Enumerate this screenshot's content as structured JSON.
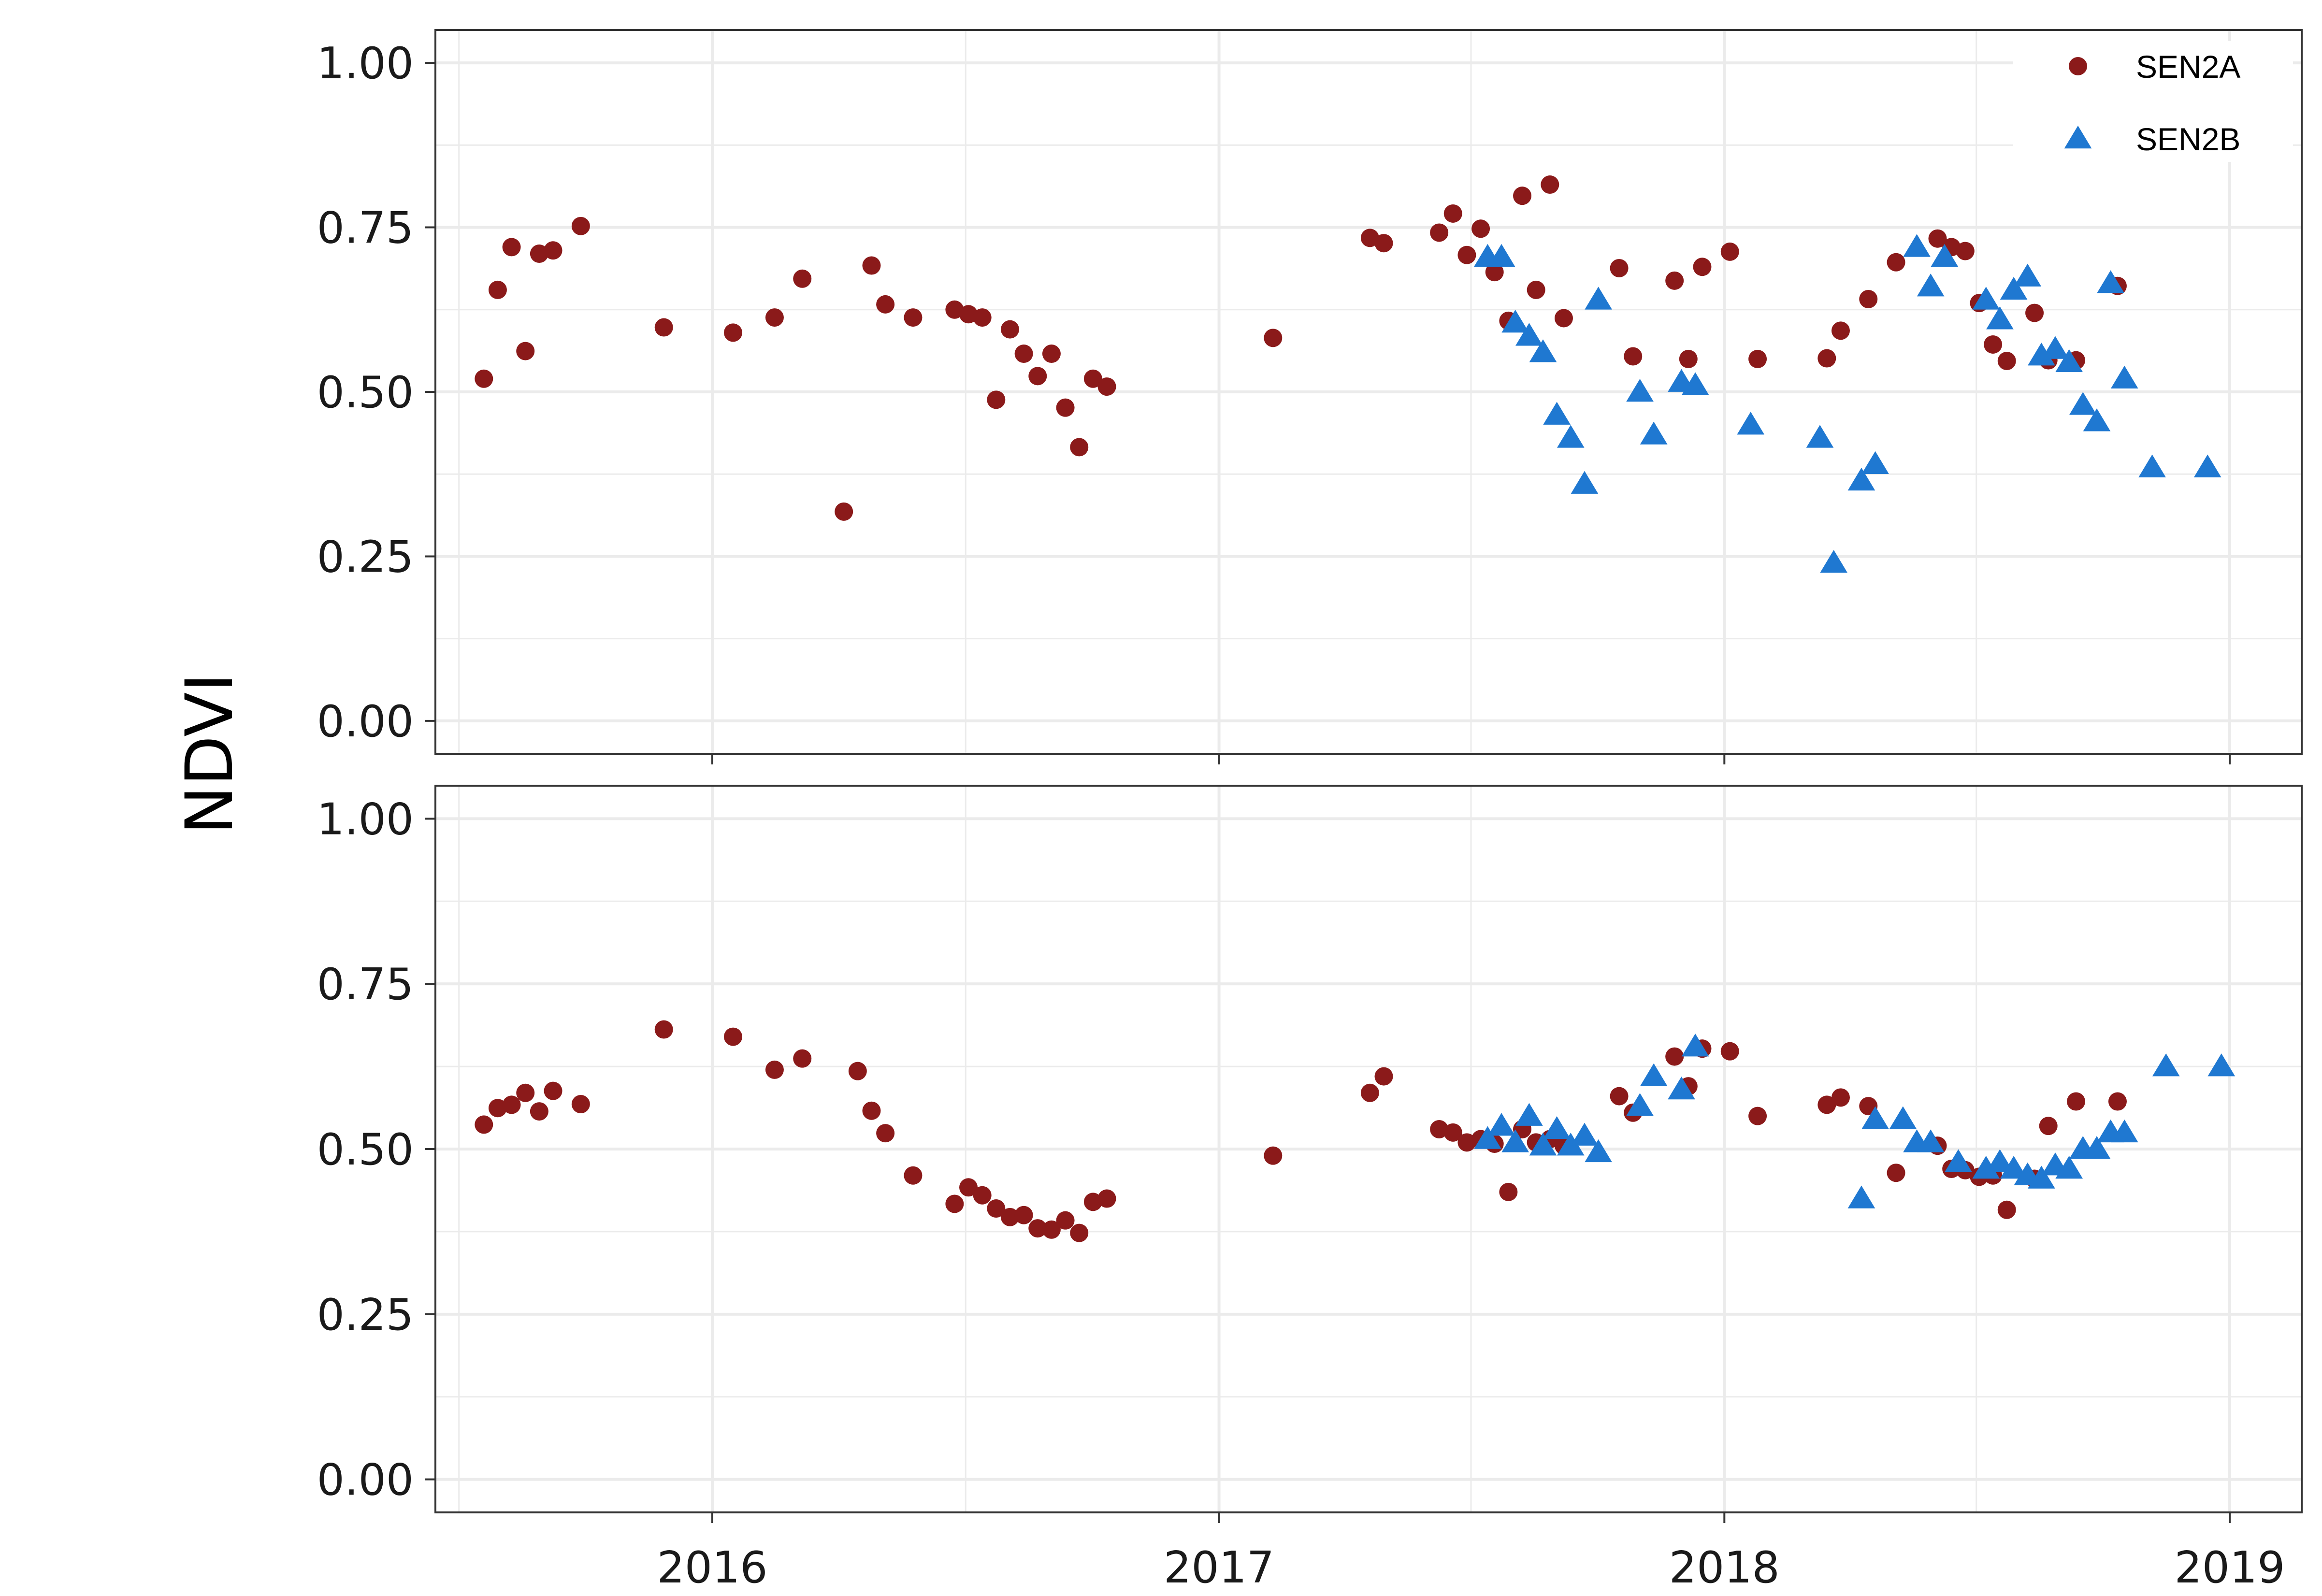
{
  "chart_data": {
    "type": "scatter",
    "ylabel": "NDVI",
    "xlabel": "",
    "x_ticks": [
      "2016",
      "2017",
      "2018",
      "2019"
    ],
    "y_ticks": [
      "0.00",
      "0.25",
      "0.50",
      "0.75",
      "1.00"
    ],
    "xlim": [
      "2015-06-15",
      "2019-02-22"
    ],
    "ylim": [
      -0.05,
      1.05
    ],
    "grid": true,
    "legend": {
      "placement": "top-right",
      "entries": [
        "SEN2A",
        "SEN2B"
      ]
    },
    "colors": {
      "SEN2A": "#8b1a1a",
      "SEN2B": "#1f78d1"
    },
    "markers": {
      "SEN2A": "circle",
      "SEN2B": "triangle"
    },
    "panels": [
      {
        "series": [
          {
            "name": "SEN2A",
            "x": [
              "2015-07-20",
              "2015-07-30",
              "2015-08-09",
              "2015-08-19",
              "2015-08-29",
              "2015-09-08",
              "2015-09-28",
              "2015-11-27",
              "2016-01-16",
              "2016-02-15",
              "2016-03-06",
              "2016-04-05",
              "2016-04-25",
              "2016-05-05",
              "2016-05-25",
              "2016-06-24",
              "2016-07-04",
              "2016-07-14",
              "2016-07-24",
              "2016-08-03",
              "2016-08-13",
              "2016-08-23",
              "2016-09-02",
              "2016-09-12",
              "2016-09-22",
              "2016-10-02",
              "2016-10-12",
              "2017-02-09",
              "2017-04-20",
              "2017-04-30",
              "2017-06-09",
              "2017-06-19",
              "2017-06-29",
              "2017-07-09",
              "2017-07-19",
              "2017-07-29",
              "2017-08-08",
              "2017-08-18",
              "2017-08-28",
              "2017-09-07",
              "2017-10-17",
              "2017-10-27",
              "2017-11-26",
              "2017-12-06",
              "2017-12-16",
              "2018-01-05",
              "2018-01-25",
              "2018-03-16",
              "2018-03-26",
              "2018-04-15",
              "2018-05-05",
              "2018-06-04",
              "2018-06-14",
              "2018-06-24",
              "2018-07-04",
              "2018-07-14",
              "2018-07-24",
              "2018-08-13",
              "2018-08-23",
              "2018-09-12",
              "2018-10-12"
            ],
            "y": [
              0.52,
              0.655,
              0.72,
              0.562,
              0.71,
              0.715,
              0.752,
              0.598,
              0.59,
              0.613,
              0.672,
              0.318,
              0.692,
              0.633,
              0.613,
              0.625,
              0.618,
              0.613,
              0.488,
              0.595,
              0.558,
              0.524,
              0.558,
              0.476,
              0.416,
              0.52,
              0.508,
              0.582,
              0.734,
              0.726,
              0.742,
              0.771,
              0.708,
              0.748,
              0.682,
              0.608,
              0.798,
              0.655,
              0.815,
              0.612,
              0.688,
              0.554,
              0.669,
              0.55,
              0.69,
              0.713,
              0.55,
              0.551,
              0.593,
              0.641,
              0.697,
              0.733,
              0.72,
              0.714,
              0.635,
              0.572,
              0.547,
              0.62,
              0.548,
              0.548,
              0.661
            ]
          },
          {
            "name": "SEN2B",
            "x": [
              "2017-07-14",
              "2017-07-24",
              "2017-08-03",
              "2017-08-13",
              "2017-08-23",
              "2017-09-02",
              "2017-09-12",
              "2017-09-22",
              "2017-10-02",
              "2017-11-01",
              "2017-11-11",
              "2017-12-01",
              "2017-12-11",
              "2018-01-20",
              "2018-03-11",
              "2018-03-21",
              "2018-04-10",
              "2018-04-20",
              "2018-05-20",
              "2018-05-30",
              "2018-06-09",
              "2018-07-09",
              "2018-07-19",
              "2018-07-29",
              "2018-08-08",
              "2018-08-18",
              "2018-08-28",
              "2018-09-07",
              "2018-09-17",
              "2018-09-27",
              "2018-10-07",
              "2018-10-17",
              "2018-11-06",
              "2018-12-16"
            ],
            "y": [
              0.705,
              0.705,
              0.605,
              0.585,
              0.56,
              0.465,
              0.43,
              0.36,
              0.64,
              0.5,
              0.435,
              0.515,
              0.51,
              0.45,
              0.43,
              0.24,
              0.365,
              0.39,
              0.72,
              0.66,
              0.705,
              0.64,
              0.61,
              0.655,
              0.675,
              0.555,
              0.565,
              0.545,
              0.48,
              0.455,
              0.665,
              0.52,
              0.385,
              0.385
            ]
          }
        ]
      },
      {
        "series": [
          {
            "name": "SEN2A",
            "x": [
              "2015-07-20",
              "2015-07-30",
              "2015-08-09",
              "2015-08-19",
              "2015-08-29",
              "2015-09-08",
              "2015-09-28",
              "2015-11-27",
              "2016-01-16",
              "2016-02-15",
              "2016-03-06",
              "2016-04-15",
              "2016-04-25",
              "2016-05-05",
              "2016-05-25",
              "2016-06-24",
              "2016-07-04",
              "2016-07-14",
              "2016-07-24",
              "2016-08-03",
              "2016-08-13",
              "2016-08-23",
              "2016-09-02",
              "2016-09-12",
              "2016-09-22",
              "2016-10-02",
              "2016-10-12",
              "2017-02-09",
              "2017-04-20",
              "2017-04-30",
              "2017-06-09",
              "2017-06-19",
              "2017-06-29",
              "2017-07-09",
              "2017-07-19",
              "2017-07-29",
              "2017-08-08",
              "2017-08-18",
              "2017-08-28",
              "2017-09-07",
              "2017-10-17",
              "2017-10-27",
              "2017-11-26",
              "2017-12-06",
              "2017-12-16",
              "2018-01-05",
              "2018-01-25",
              "2018-03-16",
              "2018-03-26",
              "2018-04-15",
              "2018-05-05",
              "2018-06-04",
              "2018-06-14",
              "2018-06-24",
              "2018-07-04",
              "2018-07-14",
              "2018-07-24",
              "2018-08-13",
              "2018-08-23",
              "2018-09-12",
              "2018-10-12"
            ],
            "y": [
              0.537,
              0.562,
              0.567,
              0.585,
              0.557,
              0.588,
              0.568,
              0.681,
              0.67,
              0.62,
              0.637,
              0.618,
              0.558,
              0.524,
              0.46,
              0.417,
              0.442,
              0.43,
              0.41,
              0.397,
              0.4,
              0.38,
              0.378,
              0.392,
              0.373,
              0.42,
              0.425,
              0.49,
              0.585,
              0.61,
              0.53,
              0.525,
              0.51,
              0.515,
              0.508,
              0.435,
              0.53,
              0.51,
              0.515,
              0.505,
              0.58,
              0.555,
              0.64,
              0.595,
              0.652,
              0.648,
              0.55,
              0.567,
              0.578,
              0.565,
              0.464,
              0.505,
              0.47,
              0.468,
              0.458,
              0.46,
              0.408,
              0.455,
              0.535,
              0.572,
              0.572
            ]
          },
          {
            "name": "SEN2B",
            "x": [
              "2017-07-14",
              "2017-07-24",
              "2017-08-03",
              "2017-08-13",
              "2017-08-23",
              "2017-09-02",
              "2017-09-12",
              "2017-09-22",
              "2017-10-02",
              "2017-11-01",
              "2017-11-11",
              "2017-12-01",
              "2017-12-11",
              "2018-04-10",
              "2018-04-20",
              "2018-05-10",
              "2018-05-20",
              "2018-05-30",
              "2018-06-19",
              "2018-07-09",
              "2018-07-19",
              "2018-07-29",
              "2018-08-08",
              "2018-08-18",
              "2018-08-28",
              "2018-09-07",
              "2018-09-17",
              "2018-09-27",
              "2018-10-07",
              "2018-10-17",
              "2018-11-16",
              "2018-12-26"
            ],
            "y": [
              0.515,
              0.535,
              0.51,
              0.55,
              0.505,
              0.53,
              0.505,
              0.52,
              0.495,
              0.565,
              0.61,
              0.59,
              0.655,
              0.425,
              0.545,
              0.545,
              0.51,
              0.51,
              0.48,
              0.47,
              0.48,
              0.47,
              0.46,
              0.455,
              0.475,
              0.47,
              0.5,
              0.5,
              0.525,
              0.525,
              0.625,
              0.625
            ]
          }
        ]
      }
    ]
  }
}
